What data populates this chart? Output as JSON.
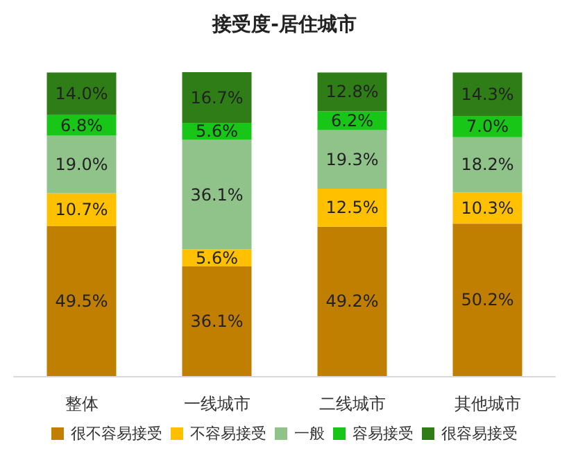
{
  "chart_data": {
    "type": "bar",
    "title": "接受度-居住城市",
    "stacked": true,
    "legend": "bottom",
    "categories": [
      "整体",
      "一线城市",
      "二线城市",
      "其他城市"
    ],
    "series": [
      {
        "name": "很不容易接受",
        "color": "#c07f00",
        "values": [
          49.5,
          36.1,
          49.2,
          50.2
        ],
        "value_labels": [
          "49.5%",
          "36.1%",
          "49.2%",
          "50.2%"
        ]
      },
      {
        "name": "不容易接受",
        "color": "#ffc000",
        "values": [
          10.7,
          5.6,
          12.5,
          10.3
        ],
        "value_labels": [
          "10.7%",
          "5.6%",
          "12.5%",
          "10.3%"
        ]
      },
      {
        "name": "一般",
        "color": "#8fc38a",
        "values": [
          19.0,
          36.1,
          19.3,
          18.2
        ],
        "value_labels": [
          "19.0%",
          "36.1%",
          "19.3%",
          "18.2%"
        ]
      },
      {
        "name": "容易接受",
        "color": "#17c617",
        "values": [
          6.8,
          5.6,
          6.2,
          7.0
        ],
        "value_labels": [
          "6.8%",
          "5.6%",
          "6.2%",
          "7.0%"
        ]
      },
      {
        "name": "很容易接受",
        "color": "#2e7d16",
        "values": [
          14.0,
          16.7,
          12.8,
          14.3
        ],
        "value_labels": [
          "14.0%",
          "16.7%",
          "12.8%",
          "14.3%"
        ]
      }
    ]
  }
}
